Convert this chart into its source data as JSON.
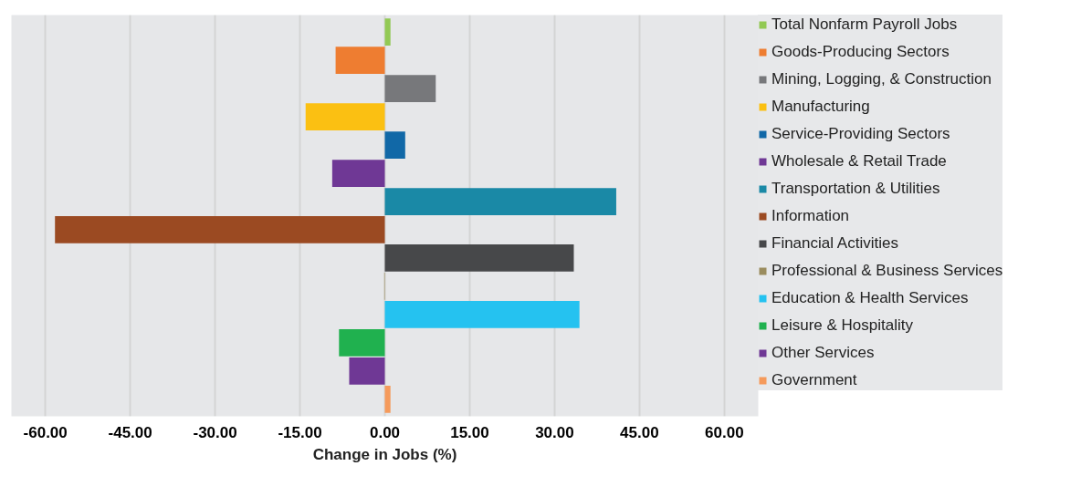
{
  "chart_data": {
    "type": "bar",
    "orientation": "horizontal",
    "stacked": true,
    "xlabel": "Change in Jobs (%)",
    "categories": [
      null,
      null,
      null,
      null,
      null,
      null,
      null,
      null,
      null,
      null,
      null,
      null,
      null,
      null
    ],
    "series": [
      {
        "name": "Total Nonfarm Payroll Jobs",
        "color": "#92c954",
        "values": [
          1.0,
          null,
          null,
          null,
          null,
          null,
          null,
          null,
          null,
          null,
          null,
          null,
          null,
          null
        ]
      },
      {
        "name": "Goods-Producing Sectors",
        "color": "#ee7d31",
        "values": [
          null,
          -8.7,
          null,
          null,
          null,
          null,
          null,
          null,
          null,
          null,
          null,
          null,
          null,
          null
        ]
      },
      {
        "name": "Mining, Logging, & Construction",
        "color": "#77787b",
        "values": [
          null,
          null,
          9.0,
          null,
          null,
          null,
          null,
          null,
          null,
          null,
          null,
          null,
          null,
          null
        ]
      },
      {
        "name": "Manufacturing",
        "color": "#fbc012",
        "values": [
          null,
          null,
          null,
          -14.0,
          null,
          null,
          null,
          null,
          null,
          null,
          null,
          null,
          null,
          null
        ]
      },
      {
        "name": "Service-Providing Sectors",
        "color": "#1168a7",
        "values": [
          null,
          null,
          null,
          null,
          3.6,
          null,
          null,
          null,
          null,
          null,
          null,
          null,
          null,
          null
        ]
      },
      {
        "name": "Wholesale & Retail Trade",
        "color": "#6f3895",
        "values": [
          null,
          null,
          null,
          null,
          null,
          -9.3,
          null,
          null,
          null,
          null,
          null,
          null,
          null,
          null
        ]
      },
      {
        "name": "Transportation & Utilities",
        "color": "#1a89a6",
        "values": [
          null,
          null,
          null,
          null,
          null,
          null,
          40.9,
          null,
          null,
          null,
          null,
          null,
          null,
          null
        ]
      },
      {
        "name": "Information",
        "color": "#9b4a22",
        "values": [
          null,
          null,
          null,
          null,
          null,
          null,
          null,
          -58.3,
          null,
          null,
          null,
          null,
          null,
          null
        ]
      },
      {
        "name": "Financial Activities",
        "color": "#47484a",
        "values": [
          null,
          null,
          null,
          null,
          null,
          null,
          null,
          null,
          33.4,
          null,
          null,
          null,
          null,
          null
        ]
      },
      {
        "name": "Professional & Business Services",
        "color": "#9a8c5e",
        "values": [
          null,
          null,
          null,
          null,
          null,
          null,
          null,
          null,
          null,
          -0.1,
          null,
          null,
          null,
          null
        ]
      },
      {
        "name": "Education & Health Services",
        "color": "#25c2f0",
        "values": [
          null,
          null,
          null,
          null,
          null,
          null,
          null,
          null,
          null,
          null,
          34.4,
          null,
          null,
          null
        ]
      },
      {
        "name": "Leisure & Hospitality",
        "color": "#20b14f",
        "values": [
          null,
          null,
          null,
          null,
          null,
          null,
          null,
          null,
          null,
          null,
          null,
          -8.1,
          null,
          null
        ]
      },
      {
        "name": "Other Services",
        "color": "#6f3895",
        "values": [
          null,
          null,
          null,
          null,
          null,
          null,
          null,
          null,
          null,
          null,
          null,
          null,
          -6.3,
          null
        ]
      },
      {
        "name": "Government",
        "color": "#f59a5b",
        "values": [
          null,
          null,
          null,
          null,
          null,
          null,
          null,
          null,
          null,
          null,
          null,
          null,
          null,
          1.0
        ]
      }
    ],
    "xlim": [
      -66,
      66
    ],
    "xticks": [
      {
        "value": -60,
        "label": "-60.00"
      },
      {
        "value": -45,
        "label": "-45.00"
      },
      {
        "value": -30,
        "label": "-30.00"
      },
      {
        "value": -15,
        "label": "-15.00"
      },
      {
        "value": 0,
        "label": "0.00"
      },
      {
        "value": 15,
        "label": "15.00"
      },
      {
        "value": 30,
        "label": "30.00"
      },
      {
        "value": 45,
        "label": "45.00"
      },
      {
        "value": 60,
        "label": "60.00"
      }
    ],
    "grid": "x",
    "legend": "right",
    "tick_labels": "x"
  }
}
